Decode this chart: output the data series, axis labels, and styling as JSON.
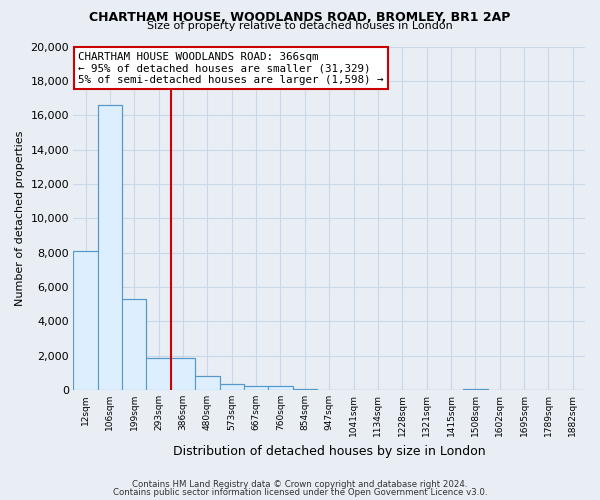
{
  "title": "CHARTHAM HOUSE, WOODLANDS ROAD, BROMLEY, BR1 2AP",
  "subtitle": "Size of property relative to detached houses in London",
  "xlabel": "Distribution of detached houses by size in London",
  "ylabel": "Number of detached properties",
  "bar_labels": [
    "12sqm",
    "106sqm",
    "199sqm",
    "293sqm",
    "386sqm",
    "480sqm",
    "573sqm",
    "667sqm",
    "760sqm",
    "854sqm",
    "947sqm",
    "1041sqm",
    "1134sqm",
    "1228sqm",
    "1321sqm",
    "1415sqm",
    "1508sqm",
    "1602sqm",
    "1695sqm",
    "1789sqm",
    "1882sqm"
  ],
  "bar_values": [
    8100,
    16600,
    5300,
    1850,
    1850,
    800,
    350,
    230,
    230,
    50,
    0,
    0,
    0,
    0,
    0,
    0,
    50,
    0,
    0,
    0,
    0
  ],
  "bar_color_fill": "#ddeeff",
  "bar_color_edge": "#5599cc",
  "vline_index": 4,
  "vline_color": "#cc0000",
  "ylim": [
    0,
    20000
  ],
  "yticks": [
    0,
    2000,
    4000,
    6000,
    8000,
    10000,
    12000,
    14000,
    16000,
    18000,
    20000
  ],
  "annotation_title": "CHARTHAM HOUSE WOODLANDS ROAD: 366sqm",
  "annotation_line1": "← 95% of detached houses are smaller (31,329)",
  "annotation_line2": "5% of semi-detached houses are larger (1,598) →",
  "footer_line1": "Contains HM Land Registry data © Crown copyright and database right 2024.",
  "footer_line2": "Contains public sector information licensed under the Open Government Licence v3.0.",
  "bg_color": "#e8eef4",
  "plot_bg_color": "#e8eef4",
  "grid_color": "#c8d8e8"
}
